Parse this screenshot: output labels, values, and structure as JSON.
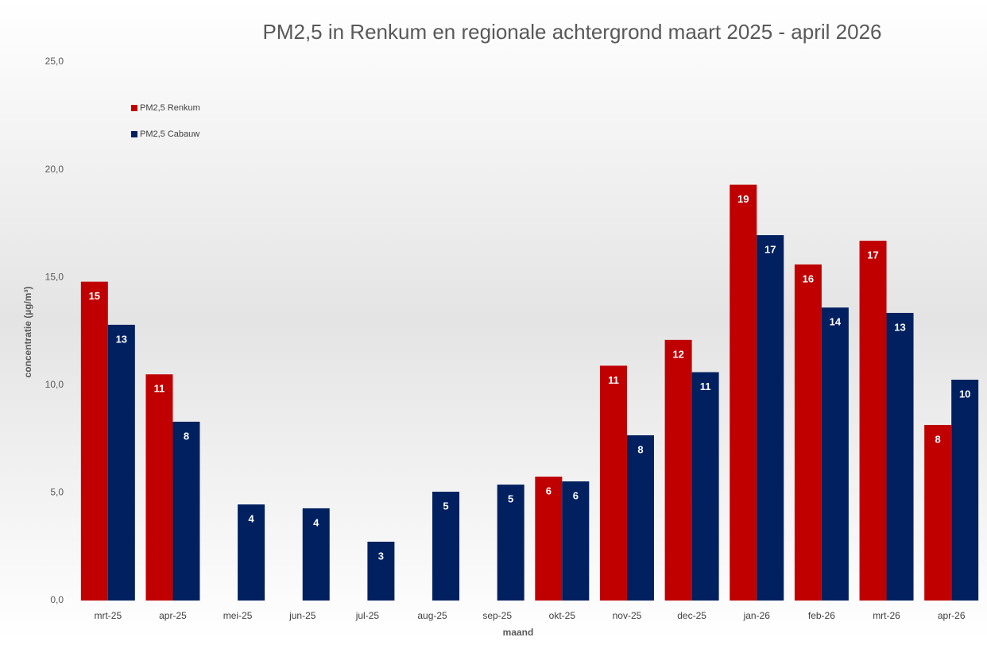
{
  "chart_data": {
    "type": "bar",
    "title": "PM2,5 in Renkum en regionale achtergrond maart 2025 - april 2026",
    "x_label": "maand",
    "y_label": "concentratie (µg/m³)",
    "categories": [
      "mrt-25",
      "apr-25",
      "mei-25",
      "jun-25",
      "jul-25",
      "aug-25",
      "sep-25",
      "okt-25",
      "nov-25",
      "dec-25",
      "jan-26",
      "feb-26",
      "mrt-26",
      "apr-26"
    ],
    "series": [
      {
        "name": "PM2,5 Renkum",
        "color": "#c00000",
        "values": [
          14.8,
          10.5,
          null,
          null,
          null,
          null,
          null,
          5.75,
          10.9,
          12.1,
          19.3,
          15.6,
          16.7,
          8.15
        ],
        "value_labels": [
          "15",
          "11",
          null,
          null,
          null,
          null,
          null,
          "6",
          "11",
          "12",
          "19",
          "16",
          "17",
          "8"
        ]
      },
      {
        "name": "PM2,5 Cabauw",
        "color": "#002060",
        "values": [
          12.8,
          8.3,
          4.46,
          4.28,
          2.73,
          5.05,
          5.38,
          5.53,
          7.67,
          10.6,
          16.96,
          13.6,
          13.35,
          10.25
        ],
        "value_labels": [
          "13",
          "8",
          "4",
          "4",
          "3",
          "5",
          "5",
          "6",
          "8",
          "11",
          "17",
          "14",
          "13",
          "10"
        ]
      }
    ],
    "ylim": [
      0,
      25
    ],
    "yticks": [
      {
        "value": 0,
        "label": "0,0"
      },
      {
        "value": 5,
        "label": "5,0"
      },
      {
        "value": 10,
        "label": "10,0"
      },
      {
        "value": 15,
        "label": "15,0"
      },
      {
        "value": 20,
        "label": "20,0"
      },
      {
        "value": 25,
        "label": "25,0"
      }
    ],
    "grid": false,
    "legend": "upper left"
  }
}
